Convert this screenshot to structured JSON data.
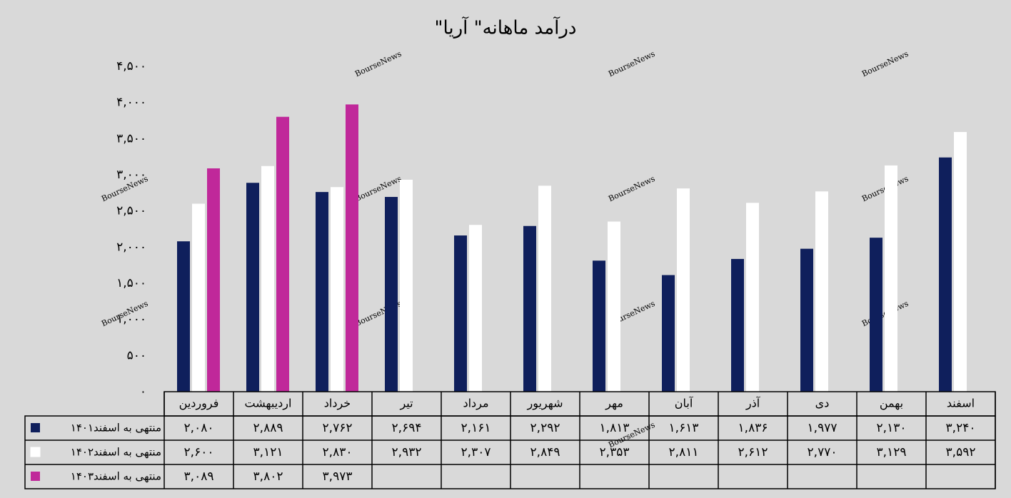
{
  "chart_data": {
    "type": "bar",
    "title": "درآمد ماهانه\" آریا\"",
    "watermark": "BourseNews",
    "categories": [
      "فروردین",
      "اردیبهشت",
      "خرداد",
      "تیر",
      "مرداد",
      "شهریور",
      "مهر",
      "آبان",
      "آذر",
      "دی",
      "بهمن",
      "اسفند"
    ],
    "series": [
      {
        "name": "منتهی به اسفند۱۴۰۱",
        "color": "#0f1f5c",
        "values": [
          2080,
          2889,
          2762,
          2694,
          2161,
          2292,
          1813,
          1613,
          1836,
          1977,
          2130,
          3240
        ],
        "value_labels": [
          "۲,۰۸۰",
          "۲,۸۸۹",
          "۲,۷۶۲",
          "۲,۶۹۴",
          "۲,۱۶۱",
          "۲,۲۹۲",
          "۱,۸۱۳",
          "۱,۶۱۳",
          "۱,۸۳۶",
          "۱,۹۷۷",
          "۲,۱۳۰",
          "۳,۲۴۰"
        ]
      },
      {
        "name": "منتهی به اسفند۱۴۰۲",
        "color": "#ffffff",
        "values": [
          2600,
          3121,
          2830,
          2932,
          2307,
          2849,
          2353,
          2811,
          2612,
          2770,
          3129,
          3592
        ],
        "value_labels": [
          "۲,۶۰۰",
          "۳,۱۲۱",
          "۲,۸۳۰",
          "۲,۹۳۲",
          "۲,۳۰۷",
          "۲,۸۴۹",
          "۲,۳۵۳",
          "۲,۸۱۱",
          "۲,۶۱۲",
          "۲,۷۷۰",
          "۳,۱۲۹",
          "۳,۵۹۲"
        ]
      },
      {
        "name": "منتهی به اسفند۱۴۰۳",
        "color": "#c0289a",
        "values": [
          3089,
          3802,
          3973,
          null,
          null,
          null,
          null,
          null,
          null,
          null,
          null,
          null
        ],
        "value_labels": [
          "۳,۰۸۹",
          "۳,۸۰۲",
          "۳,۹۷۳",
          null,
          null,
          null,
          null,
          null,
          null,
          null,
          null,
          null
        ]
      }
    ],
    "ylim": [
      0,
      4500
    ],
    "yticks": [
      {
        "value": 0,
        "label": "۰"
      },
      {
        "value": 500,
        "label": "۵۰۰"
      },
      {
        "value": 1000,
        "label": "۱,۰۰۰"
      },
      {
        "value": 1500,
        "label": "۱,۵۰۰"
      },
      {
        "value": 2000,
        "label": "۲,۰۰۰"
      },
      {
        "value": 2500,
        "label": "۲,۵۰۰"
      },
      {
        "value": 3000,
        "label": "۳,۰۰۰"
      },
      {
        "value": 3500,
        "label": "۳,۵۰۰"
      },
      {
        "value": 4000,
        "label": "۴,۰۰۰"
      },
      {
        "value": 4500,
        "label": "۴,۵۰۰"
      }
    ],
    "grid": false
  }
}
